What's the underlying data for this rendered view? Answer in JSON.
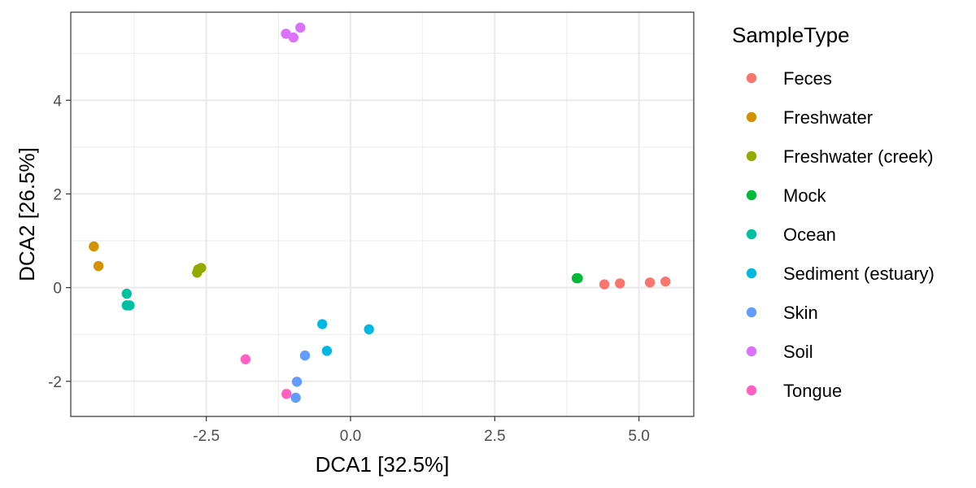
{
  "chart_data": {
    "type": "scatter",
    "xlabel": "DCA1   [32.5%]",
    "ylabel": "DCA2   [26.5%]",
    "xlim": [
      -4.85,
      5.95
    ],
    "ylim": [
      -2.75,
      5.88
    ],
    "x_ticks": [
      -2.5,
      0.0,
      2.5,
      5.0
    ],
    "x_tick_labels": [
      "-2.5",
      "0.0",
      "2.5",
      "5.0"
    ],
    "y_ticks": [
      -2,
      0,
      2,
      4
    ],
    "y_tick_labels": [
      "-2",
      "0",
      "2",
      "4"
    ],
    "grid": true,
    "legend": {
      "title": "SampleType",
      "placement": "right"
    },
    "series": [
      {
        "name": "Feces",
        "color": "#F8766D",
        "points": [
          [
            4.4,
            0.07
          ],
          [
            4.67,
            0.09
          ],
          [
            5.19,
            0.11
          ],
          [
            5.46,
            0.13
          ]
        ]
      },
      {
        "name": "Freshwater",
        "color": "#D39200",
        "points": [
          [
            -4.45,
            0.88
          ],
          [
            -4.37,
            0.46
          ]
        ]
      },
      {
        "name": "Freshwater (creek)",
        "color": "#93AA00",
        "points": [
          [
            -2.66,
            0.32
          ],
          [
            -2.64,
            0.39
          ],
          [
            -2.59,
            0.42
          ]
        ]
      },
      {
        "name": "Mock",
        "color": "#00BA38",
        "points": [
          [
            3.92,
            0.2
          ],
          [
            3.94,
            0.2
          ]
        ]
      },
      {
        "name": "Ocean",
        "color": "#00C19F",
        "points": [
          [
            -3.88,
            -0.13
          ],
          [
            -3.88,
            -0.38
          ],
          [
            -3.83,
            -0.38
          ]
        ]
      },
      {
        "name": "Sediment (estuary)",
        "color": "#00B9E3",
        "points": [
          [
            -0.49,
            -0.78
          ],
          [
            0.32,
            -0.89
          ],
          [
            -0.41,
            -1.35
          ]
        ]
      },
      {
        "name": "Skin",
        "color": "#619CFF",
        "points": [
          [
            -0.79,
            -1.45
          ],
          [
            -0.93,
            -2.01
          ],
          [
            -0.95,
            -2.35
          ]
        ]
      },
      {
        "name": "Soil",
        "color": "#DB72FB",
        "points": [
          [
            -1.12,
            5.42
          ],
          [
            -0.99,
            5.34
          ],
          [
            -0.87,
            5.55
          ]
        ]
      },
      {
        "name": "Tongue",
        "color": "#FF61C3",
        "points": [
          [
            -1.82,
            -1.53
          ],
          [
            -1.11,
            -2.27
          ]
        ]
      }
    ]
  }
}
